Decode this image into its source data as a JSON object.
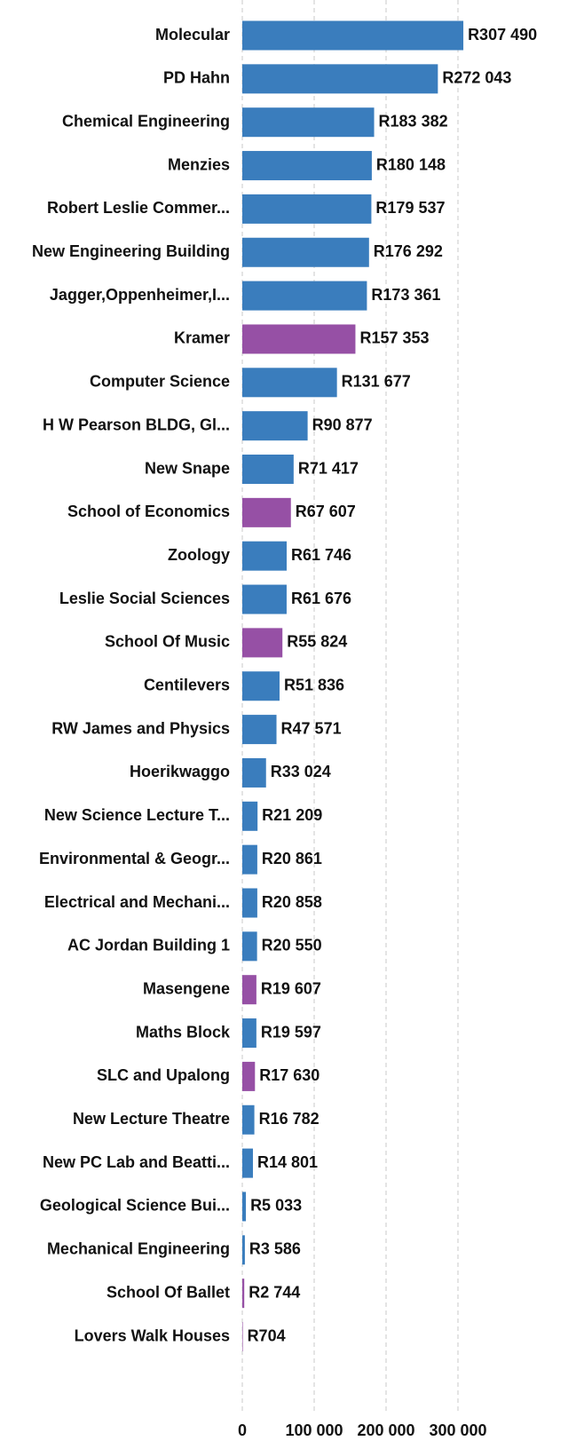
{
  "chart_data": {
    "type": "barh",
    "categories": [
      "Molecular",
      "PD Hahn",
      "Chemical Engineering",
      "Menzies",
      "Robert Leslie Commer...",
      "New Engineering Building",
      "Jagger,Oppenheimer,I...",
      "Kramer",
      "Computer Science",
      "H W Pearson BLDG, Gl...",
      "New Snape",
      "School of Economics",
      "Zoology",
      "Leslie Social Sciences",
      "School Of Music",
      "Centilevers",
      "RW James and Physics",
      "Hoerikwaggo",
      "New Science Lecture T...",
      "Environmental & Geogr...",
      "Electrical and Mechani...",
      "AC Jordan Building 1",
      "Masengene",
      "Maths Block",
      "SLC and Upalong",
      "New Lecture Theatre",
      "New PC Lab and Beatti...",
      "Geological Science Bui...",
      "Mechanical Engineering",
      "School Of Ballet",
      "Lovers Walk Houses"
    ],
    "values": [
      307490,
      272043,
      183382,
      180148,
      179537,
      176292,
      173361,
      157353,
      131677,
      90877,
      71417,
      67607,
      61746,
      61676,
      55824,
      51836,
      47571,
      33024,
      21209,
      20861,
      20858,
      20550,
      19607,
      19597,
      17630,
      16782,
      14801,
      5033,
      3586,
      2744,
      704
    ],
    "value_labels": [
      "R307 490",
      "R272 043",
      "R183 382",
      "R180 148",
      "R179 537",
      "R176 292",
      "R173 361",
      "R157 353",
      "R131 677",
      "R90 877",
      "R71 417",
      "R67 607",
      "R61 746",
      "R61 676",
      "R55 824",
      "R51 836",
      "R47 571",
      "R33 024",
      "R21 209",
      "R20 861",
      "R20 858",
      "R20 550",
      "R19 607",
      "R19 597",
      "R17 630",
      "R16 782",
      "R14 801",
      "R5 033",
      "R3 586",
      "R2 744",
      "R704"
    ],
    "colors": [
      "#3a7dbd",
      "#3a7dbd",
      "#3a7dbd",
      "#3a7dbd",
      "#3a7dbd",
      "#3a7dbd",
      "#3a7dbd",
      "#9650a5",
      "#3a7dbd",
      "#3a7dbd",
      "#3a7dbd",
      "#9650a5",
      "#3a7dbd",
      "#3a7dbd",
      "#9650a5",
      "#3a7dbd",
      "#3a7dbd",
      "#3a7dbd",
      "#3a7dbd",
      "#3a7dbd",
      "#3a7dbd",
      "#3a7dbd",
      "#9650a5",
      "#3a7dbd",
      "#9650a5",
      "#3a7dbd",
      "#3a7dbd",
      "#3a7dbd",
      "#3a7dbd",
      "#9650a5",
      "#9650a5"
    ],
    "xlim": [
      0,
      300000
    ],
    "xticks": [
      0,
      {
        "value": 100000,
        "label": "100 000"
      },
      {
        "value": 200000,
        "label": "200 000"
      },
      {
        "value": 300000,
        "label": "300 000"
      }
    ],
    "grid": true
  }
}
